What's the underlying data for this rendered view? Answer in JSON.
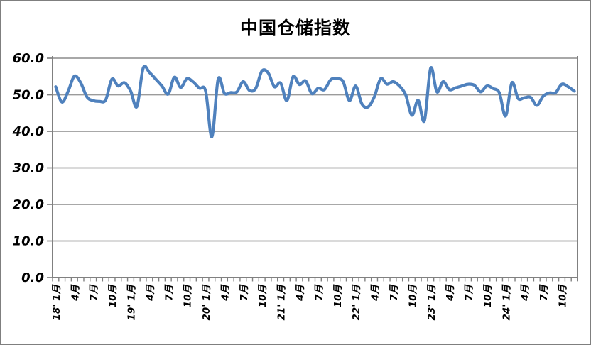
{
  "title": "中国仓储指数",
  "colors": {
    "line": "#4F81BD",
    "axis": "#808080",
    "grid": "#9B9B9B",
    "background": "#FFFFFF",
    "border": "#7F7F7F",
    "text": "#000000"
  },
  "chart_data": {
    "type": "line",
    "title": "中国仓储指数",
    "xlabel": "",
    "ylabel": "",
    "ylim": [
      0,
      60
    ],
    "y_tick_step": 10,
    "y_tick_labels": [
      "60.0",
      "50.0",
      "40.0",
      "30.0",
      "20.0",
      "10.0",
      "0.0"
    ],
    "grid": "horizontal",
    "legend_position": "none",
    "x_start_month": "2018-01",
    "x_end_month": "2024-12",
    "x_label_every_months": 3,
    "x_tick_labels": [
      "18' 1月",
      "4月",
      "7月",
      "10月",
      "19' 1月",
      "4月",
      "7月",
      "10月",
      "20' 1月",
      "4月",
      "7月",
      "10月",
      "21' 1月",
      "4月",
      "7月",
      "10月",
      "22' 1月",
      "4月",
      "7月",
      "10月",
      "23' 1月",
      "4月",
      "7月",
      "10月",
      "24' 1月",
      "4月",
      "7月",
      "10月"
    ],
    "series": [
      {
        "name": "中国仓储指数",
        "values": [
          52.2,
          48.0,
          51.0,
          55.1,
          53.3,
          49.4,
          48.4,
          48.2,
          48.6,
          54.3,
          52.4,
          53.3,
          51.0,
          46.8,
          57.3,
          56.1,
          54.3,
          52.4,
          50.2,
          54.8,
          52.0,
          54.4,
          53.5,
          51.8,
          51.0,
          38.5,
          54.3,
          50.4,
          50.6,
          50.8,
          53.6,
          51.2,
          51.7,
          56.5,
          56.0,
          52.2,
          53.2,
          48.4,
          55.0,
          52.8,
          53.8,
          50.3,
          51.8,
          51.4,
          54.1,
          54.4,
          53.6,
          48.4,
          52.4,
          47.5,
          46.7,
          49.5,
          54.4,
          52.9,
          53.6,
          52.4,
          50.0,
          44.4,
          48.5,
          42.9,
          57.3,
          50.8,
          53.6,
          51.4,
          51.9,
          52.4,
          52.9,
          52.6,
          50.8,
          52.4,
          51.7,
          50.5,
          44.2,
          53.3,
          49.0,
          49.2,
          49.3,
          47.1,
          49.6,
          50.5,
          50.6,
          52.9,
          52.2,
          51.0
        ]
      }
    ]
  }
}
